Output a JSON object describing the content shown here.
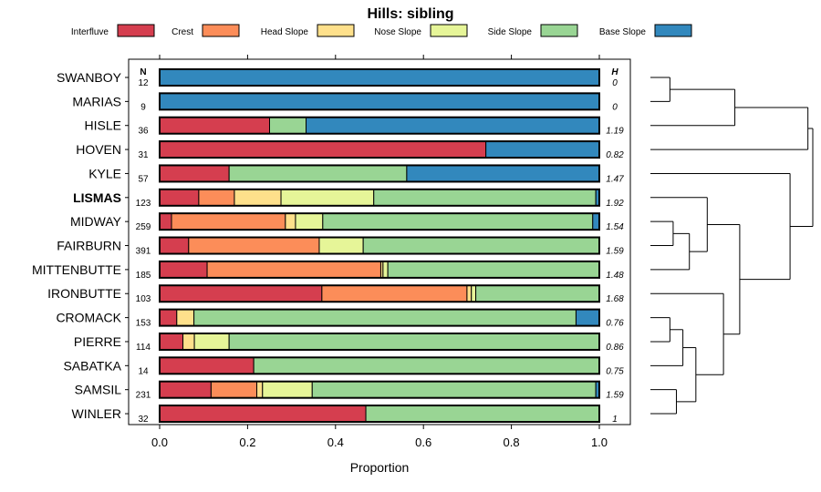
{
  "chart_data": {
    "type": "bar",
    "orientation": "horizontal",
    "stacked": true,
    "title": "Hills: sibling",
    "xlabel": "Proportion",
    "ylabel": "",
    "xlim": [
      0,
      1
    ],
    "x_ticks": [
      "0.0",
      "0.2",
      "0.4",
      "0.6",
      "0.8",
      "1.0"
    ],
    "n_header": "N",
    "h_header": "H",
    "legend_position": "top",
    "highlight": "LISMAS",
    "components": [
      {
        "name": "Interfluve",
        "color": "#D53E4F"
      },
      {
        "name": "Crest",
        "color": "#FC8D59"
      },
      {
        "name": "Head Slope",
        "color": "#FEE08B"
      },
      {
        "name": "Nose Slope",
        "color": "#E6F598"
      },
      {
        "name": "Side Slope",
        "color": "#99D594"
      },
      {
        "name": "Base Slope",
        "color": "#3288BD"
      }
    ],
    "rows": [
      {
        "name": "SWANBOY",
        "n": "12",
        "h": "0",
        "values": [
          0,
          0,
          0,
          0,
          0,
          1.0
        ]
      },
      {
        "name": "MARIAS",
        "n": "9",
        "h": "0",
        "values": [
          0,
          0,
          0,
          0,
          0,
          1.0
        ]
      },
      {
        "name": "HISLE",
        "n": "36",
        "h": "1.19",
        "values": [
          0.25,
          0,
          0,
          0,
          0.083,
          0.667
        ]
      },
      {
        "name": "HOVEN",
        "n": "31",
        "h": "0.82",
        "values": [
          0.742,
          0,
          0,
          0,
          0,
          0.258
        ]
      },
      {
        "name": "KYLE",
        "n": "57",
        "h": "1.47",
        "values": [
          0.158,
          0,
          0,
          0,
          0.404,
          0.438
        ]
      },
      {
        "name": "LISMAS",
        "n": "123",
        "h": "1.92",
        "values": [
          0.089,
          0.081,
          0.106,
          0.211,
          0.505,
          0.008
        ]
      },
      {
        "name": "MIDWAY",
        "n": "259",
        "h": "1.54",
        "values": [
          0.027,
          0.259,
          0.023,
          0.062,
          0.614,
          0.015
        ]
      },
      {
        "name": "FAIRBURN",
        "n": "391",
        "h": "1.59",
        "values": [
          0.066,
          0.297,
          0,
          0.1,
          0.537,
          0
        ]
      },
      {
        "name": "MITTENBUTTE",
        "n": "185",
        "h": "1.48",
        "values": [
          0.108,
          0.395,
          0.005,
          0.011,
          0.481,
          0
        ]
      },
      {
        "name": "IRONBUTTE",
        "n": "103",
        "h": "1.68",
        "values": [
          0.369,
          0.33,
          0.01,
          0.01,
          0.281,
          0
        ]
      },
      {
        "name": "CROMACK",
        "n": "153",
        "h": "0.76",
        "values": [
          0.039,
          0,
          0.039,
          0,
          0.869,
          0.053
        ]
      },
      {
        "name": "PIERRE",
        "n": "114",
        "h": "0.86",
        "values": [
          0.053,
          0,
          0.026,
          0.079,
          0.842,
          0
        ]
      },
      {
        "name": "SABATKA",
        "n": "14",
        "h": "0.75",
        "values": [
          0.214,
          0,
          0,
          0,
          0.786,
          0
        ]
      },
      {
        "name": "SAMSIL",
        "n": "231",
        "h": "1.59",
        "values": [
          0.117,
          0.104,
          0.013,
          0.113,
          0.645,
          0.008
        ]
      },
      {
        "name": "WINLER",
        "n": "32",
        "h": "1",
        "values": [
          0.469,
          0,
          0,
          0,
          0.531,
          0
        ]
      }
    ],
    "dendrogram_merges": [
      {
        "a": 0,
        "b": 1,
        "height": 0.12
      },
      {
        "a": "m0",
        "b": 2,
        "height": 0.52
      },
      {
        "a": "m1",
        "b": 3,
        "height": 0.97
      },
      {
        "a": 6,
        "b": 7,
        "height": 0.14
      },
      {
        "a": "m3",
        "b": 8,
        "height": 0.24
      },
      {
        "a": 5,
        "b": "m4",
        "height": 0.35
      },
      {
        "a": 10,
        "b": 11,
        "height": 0.12
      },
      {
        "a": "m6",
        "b": 12,
        "height": 0.2
      },
      {
        "a": 13,
        "b": 14,
        "height": 0.16
      },
      {
        "a": "m7",
        "b": "m8",
        "height": 0.28
      },
      {
        "a": 9,
        "b": "m9",
        "height": 0.45
      },
      {
        "a": "m5",
        "b": "m10",
        "height": 0.55
      },
      {
        "a": 4,
        "b": "m11",
        "height": 0.86
      },
      {
        "a": "m2",
        "b": "m12",
        "height": 1.0
      }
    ]
  }
}
